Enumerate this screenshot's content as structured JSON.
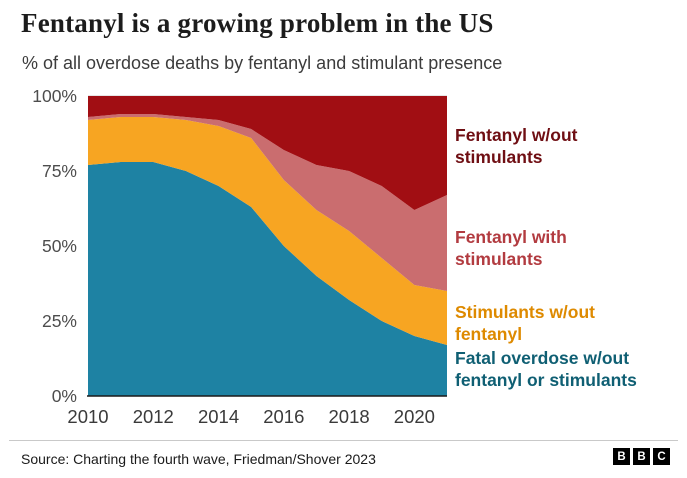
{
  "header": {
    "title": "Fentanyl is a growing problem in the US",
    "subtitle": "% of all overdose deaths by fentanyl and stimulant presence"
  },
  "legend": [
    {
      "lines": [
        "Fentanyl w/out",
        "stimulants"
      ],
      "color": "#6f0e13"
    },
    {
      "lines": [
        "Fentanyl with",
        "stimulants"
      ],
      "color": "#b23b40"
    },
    {
      "lines": [
        "Stimulants w/out",
        "fentanyl"
      ],
      "color": "#de8a00"
    },
    {
      "lines": [
        "Fatal overdose w/out",
        "fentanyl or stimulants"
      ],
      "color": "#0f5f73"
    }
  ],
  "footer": {
    "source": "Source: Charting the fourth wave, Friedman/Shover 2023",
    "logo_letters": [
      "B",
      "B",
      "C"
    ]
  },
  "chart_data": {
    "type": "area",
    "stacked": true,
    "title": "Fentanyl is a growing problem in the US",
    "subtitle": "% of all overdose deaths by fentanyl and stimulant presence",
    "xlabel": "",
    "ylabel": "% of all overdose deaths",
    "xlim": [
      2010,
      2021
    ],
    "ylim": [
      0,
      100
    ],
    "x": [
      2010,
      2011,
      2012,
      2013,
      2014,
      2015,
      2016,
      2017,
      2018,
      2019,
      2020,
      2021
    ],
    "xticks": [
      2010,
      2012,
      2014,
      2016,
      2018,
      2020
    ],
    "yticks": [
      0,
      25,
      50,
      75,
      100
    ],
    "ytick_suffix": "%",
    "grid": "horizontal",
    "legend_position": "right",
    "series": [
      {
        "id": "no-fentanyl-or-stimulants",
        "name": "Fatal overdose w/out fentanyl or stimulants",
        "color": "#1e82a3",
        "values": [
          77,
          78,
          78,
          75,
          70,
          63,
          50,
          40,
          32,
          25,
          20,
          17
        ]
      },
      {
        "id": "stimulants-without-fentanyl",
        "name": "Stimulants w/out fentanyl",
        "color": "#f7a522",
        "values": [
          15,
          15,
          15,
          17,
          20,
          23,
          22,
          22,
          23,
          21,
          17,
          18
        ]
      },
      {
        "id": "fentanyl-with-stimulants",
        "name": "Fentanyl with stimulants",
        "color": "#ca6d6f",
        "values": [
          1,
          1,
          1,
          1,
          2,
          3,
          10,
          15,
          20,
          24,
          25,
          32
        ]
      },
      {
        "id": "fentanyl-without-stimulants",
        "name": "Fentanyl w/out stimulants",
        "color": "#a10e13",
        "values": [
          7,
          6,
          6,
          7,
          8,
          11,
          18,
          23,
          25,
          30,
          38,
          33
        ]
      }
    ]
  }
}
